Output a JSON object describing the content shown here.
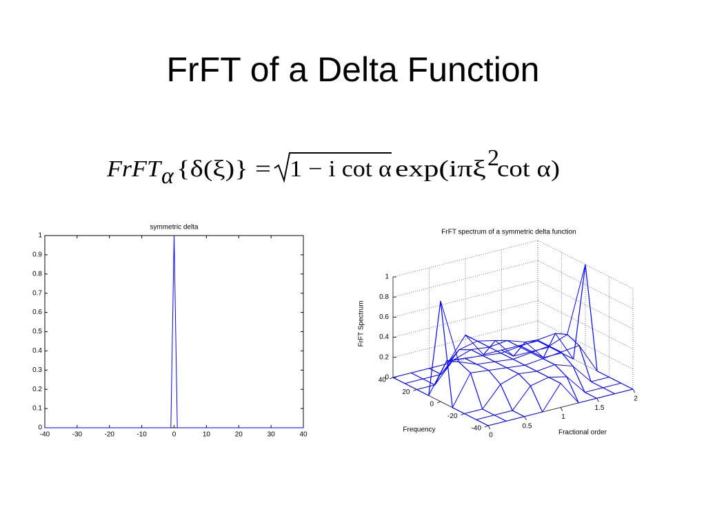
{
  "slide": {
    "title": "FrFT of a Delta Function",
    "formula": {
      "lhs": "FrFT",
      "sub": "α",
      "arg": "{δ(ξ)} =",
      "root": "1 − i cot α",
      "rhs": "exp(iπξ",
      "sup": "2",
      "tail": "cot α)"
    }
  },
  "chart_data": [
    {
      "type": "line",
      "title": "symmetric delta",
      "color": "#0000ff",
      "x": [
        -40,
        -1,
        0,
        1,
        40
      ],
      "values": [
        0,
        0,
        1,
        0,
        0
      ],
      "xlim": [
        -40,
        40
      ],
      "xticks": [
        -40,
        -30,
        -20,
        -10,
        0,
        10,
        20,
        30,
        40
      ],
      "ylim": [
        0,
        1
      ],
      "yticks": [
        0,
        0.1,
        0.2,
        0.3,
        0.4,
        0.5,
        0.6,
        0.7,
        0.8,
        0.9,
        1
      ]
    },
    {
      "type": "surface",
      "title": "FrFT spectrum of a symmetric delta function",
      "color": "#0000ff",
      "xlabel": "Fractional order",
      "ylabel": "Frequency",
      "zlabel": "FrFT Spectrum",
      "x": [
        0,
        0.25,
        0.5,
        0.75,
        1,
        1.25,
        1.5,
        1.75,
        2
      ],
      "y": [
        -40,
        -30,
        -20,
        -10,
        0,
        10,
        20,
        30,
        40
      ],
      "z": [
        [
          0,
          0,
          0,
          0,
          1,
          0,
          0,
          0,
          0
        ],
        [
          0,
          0,
          0,
          0.3,
          0.35,
          0.3,
          0,
          0,
          0
        ],
        [
          0,
          0,
          0.2,
          0.28,
          0.28,
          0.28,
          0.2,
          0,
          0
        ],
        [
          0,
          0.2,
          0.26,
          0.26,
          0.26,
          0.26,
          0.26,
          0.2,
          0
        ],
        [
          0.24,
          0.24,
          0.24,
          0.24,
          0.24,
          0.24,
          0.24,
          0.24,
          0.24
        ],
        [
          0,
          0.2,
          0.26,
          0.26,
          0.26,
          0.26,
          0.26,
          0.2,
          0
        ],
        [
          0,
          0,
          0.2,
          0.28,
          0.28,
          0.28,
          0.2,
          0,
          0
        ],
        [
          0,
          0,
          0,
          0.3,
          0.35,
          0.3,
          0,
          0,
          0
        ],
        [
          0,
          0,
          0,
          0,
          1,
          0,
          0,
          0,
          0
        ]
      ],
      "xlim": [
        0,
        2
      ],
      "xticks": [
        0,
        0.5,
        1,
        1.5,
        2
      ],
      "ylim": [
        -40,
        40
      ],
      "yticks": [
        -40,
        -20,
        0,
        20,
        40
      ],
      "zlim": [
        0,
        1
      ],
      "zticks": [
        0,
        0.2,
        0.4,
        0.6,
        0.8,
        1
      ]
    }
  ]
}
